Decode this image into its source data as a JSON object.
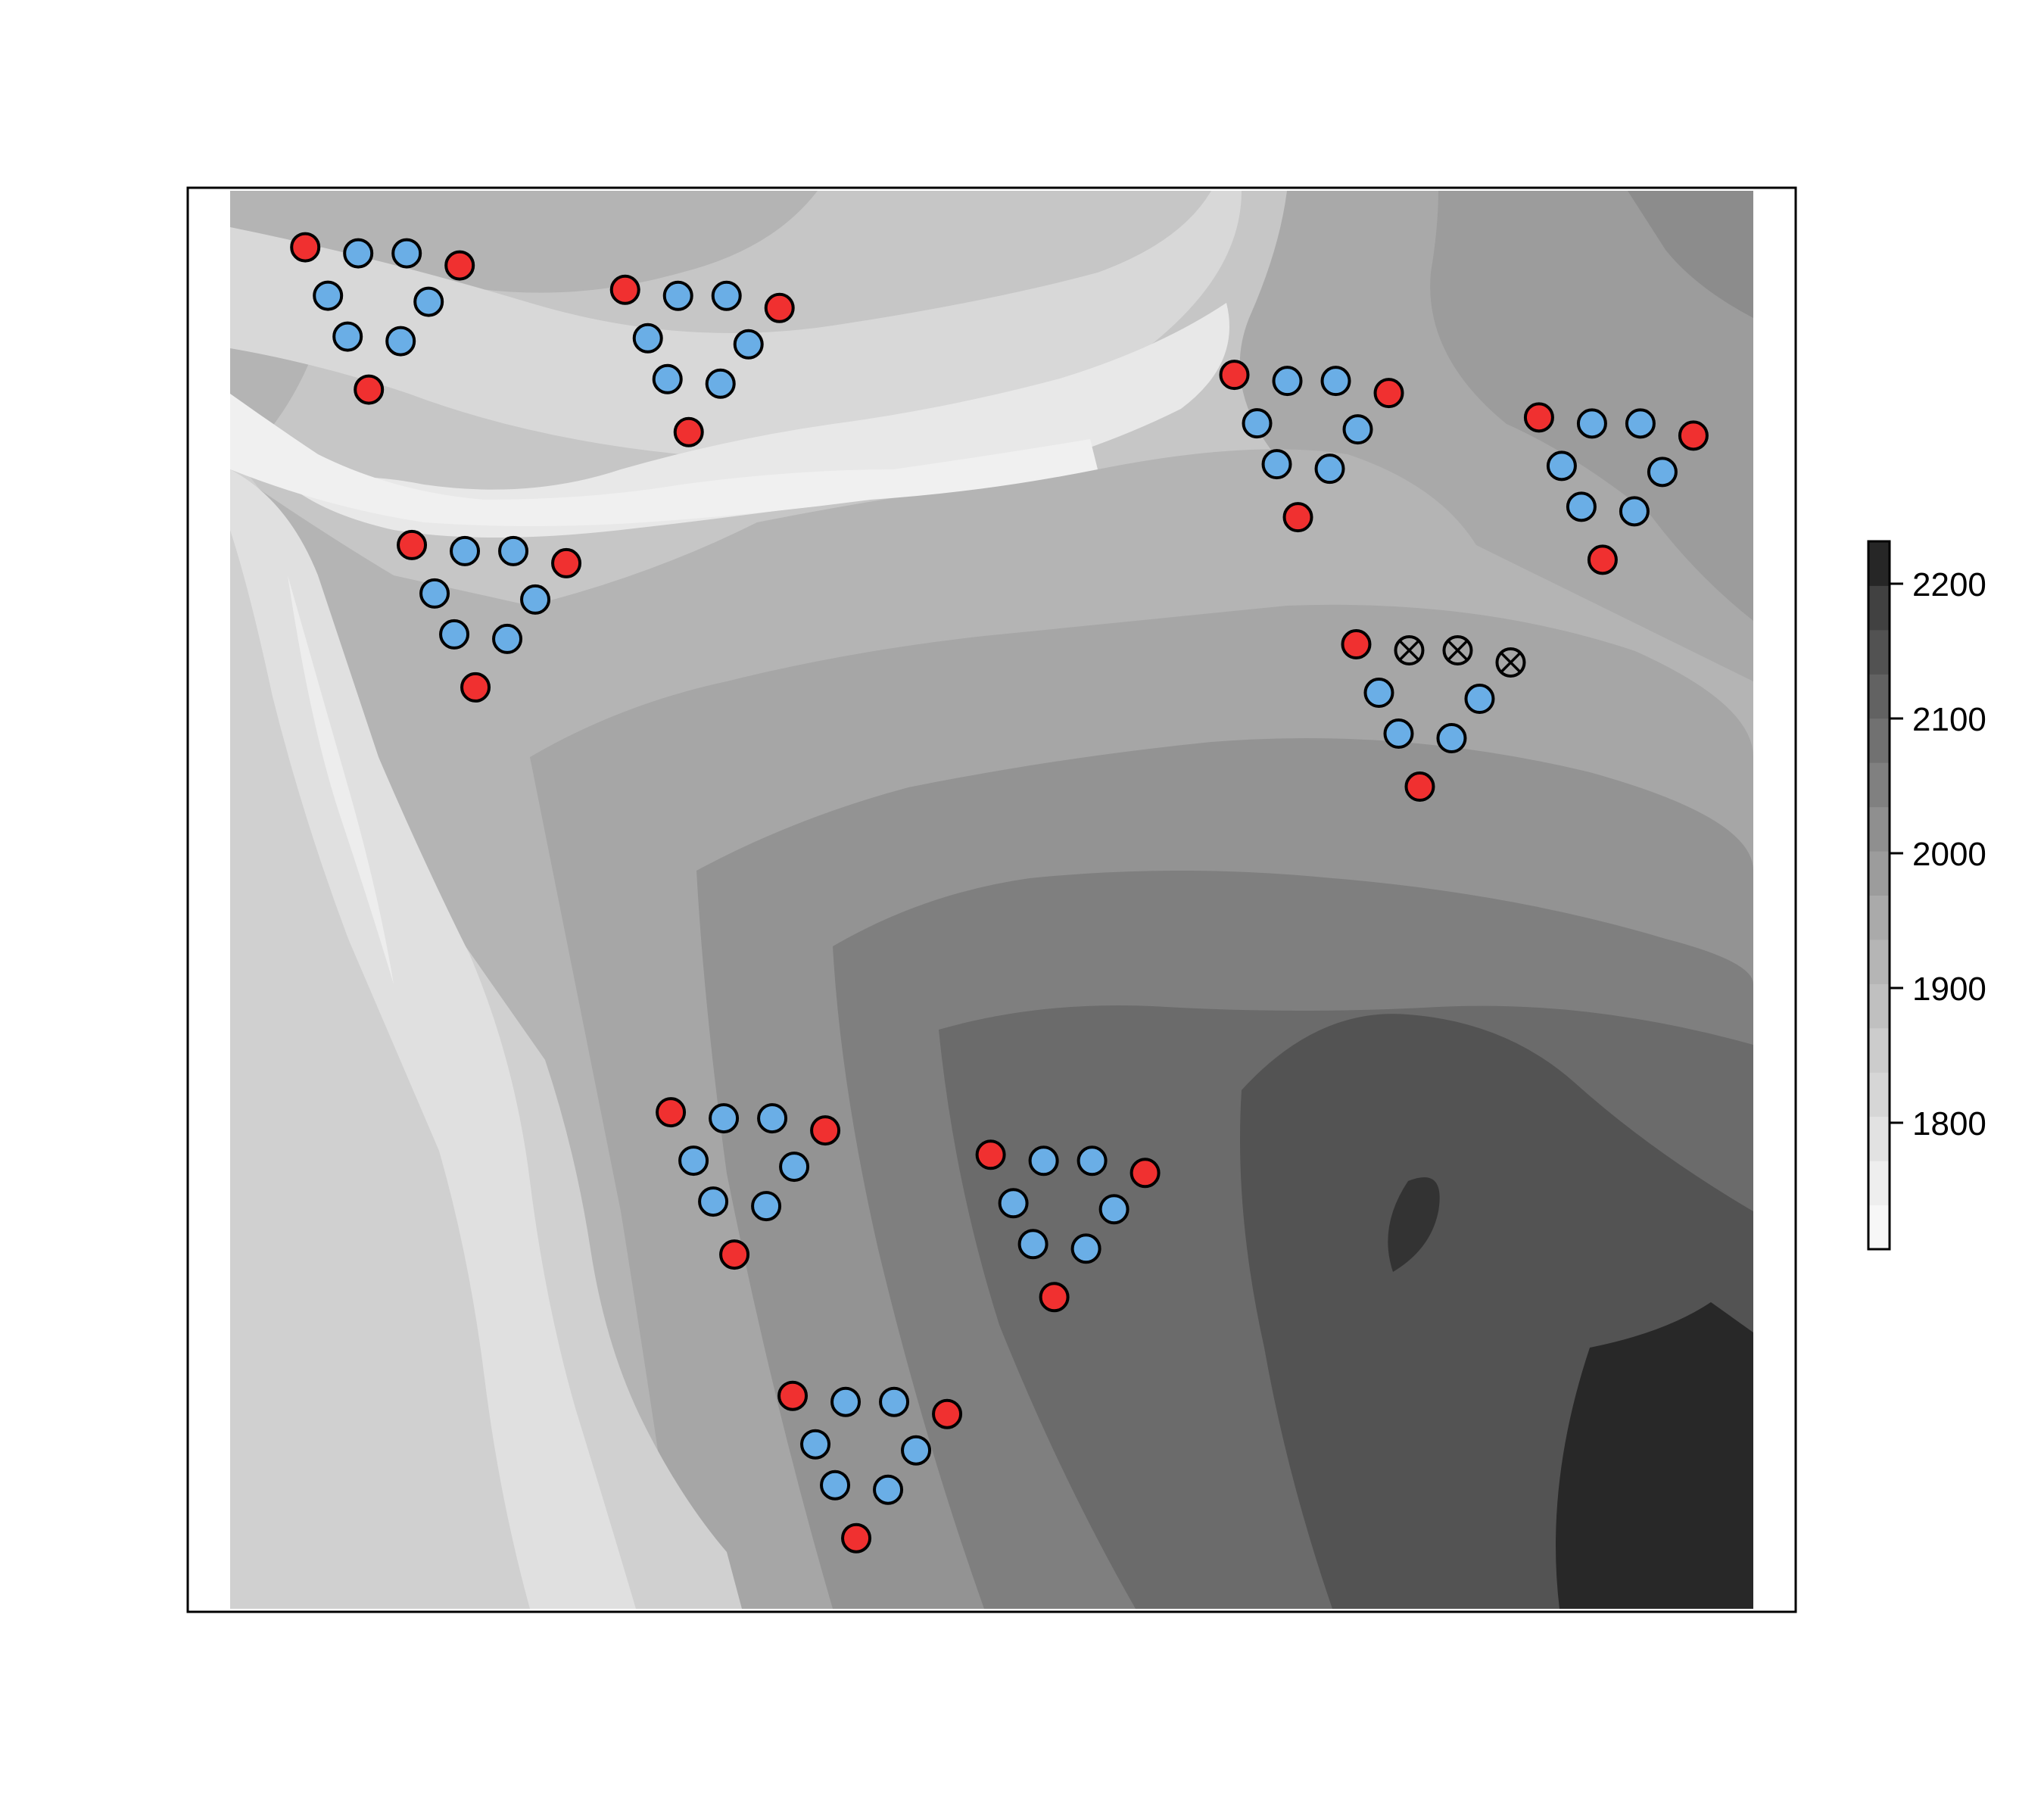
{
  "legend": {
    "ticks": [
      "1800",
      "1900",
      "2000",
      "2100",
      "2200"
    ],
    "colors": [
      "#f7f7f7",
      "#eeeeee",
      "#e2e2e2",
      "#d6d6d6",
      "#cccccc",
      "#c0c0c0",
      "#b5b5b5",
      "#aaaaaa",
      "#9c9c9c",
      "#8f8f8f",
      "#808080",
      "#717171",
      "#626262",
      "#525252",
      "#414141",
      "#262626"
    ]
  },
  "colors": {
    "endpoint_station": "#f03030",
    "interior_station": "#6aaee6",
    "station_outline": "#000000",
    "frame": "#000000"
  },
  "arrays": [
    {
      "name": "array-1",
      "excluded": [],
      "rel_center": [
        0.1,
        0.09
      ]
    },
    {
      "name": "array-2",
      "excluded": [],
      "rel_center": [
        0.31,
        0.12
      ]
    },
    {
      "name": "array-3",
      "excluded": [],
      "rel_center": [
        0.17,
        0.3
      ]
    },
    {
      "name": "array-4",
      "excluded": [],
      "rel_center": [
        0.71,
        0.18
      ]
    },
    {
      "name": "array-5",
      "excluded": [],
      "rel_center": [
        0.91,
        0.21
      ]
    },
    {
      "name": "array-6",
      "excluded": [
        1,
        2,
        3
      ],
      "rel_center": [
        0.79,
        0.37
      ]
    },
    {
      "name": "array-7",
      "excluded": [],
      "rel_center": [
        0.34,
        0.7
      ]
    },
    {
      "name": "array-8",
      "excluded": [],
      "rel_center": [
        0.55,
        0.73
      ]
    },
    {
      "name": "array-9",
      "excluded": [],
      "rel_center": [
        0.42,
        0.9
      ]
    }
  ]
}
